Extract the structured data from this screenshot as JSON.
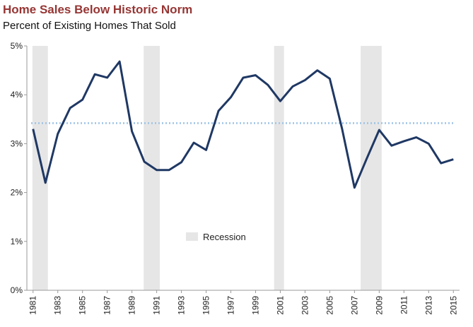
{
  "chart_data": {
    "type": "line",
    "title": "Home Sales Below Historic Norm",
    "subtitle": "Percent of Existing Homes That Sold",
    "x": [
      1981,
      1982,
      1983,
      1984,
      1985,
      1986,
      1987,
      1988,
      1989,
      1990,
      1991,
      1992,
      1993,
      1994,
      1995,
      1996,
      1997,
      1998,
      1999,
      2000,
      2001,
      2002,
      2003,
      2004,
      2005,
      2006,
      2007,
      2008,
      2009,
      2010,
      2011,
      2012,
      2013,
      2014,
      2015
    ],
    "series": [
      {
        "color": "#1f3864",
        "values": [
          3.3,
          2.2,
          3.2,
          3.73,
          3.9,
          4.42,
          4.35,
          4.68,
          3.25,
          2.63,
          2.46,
          2.46,
          2.62,
          3.02,
          2.87,
          3.67,
          3.95,
          4.35,
          4.4,
          4.2,
          3.87,
          4.17,
          4.3,
          4.5,
          4.33,
          3.3,
          2.1,
          2.7,
          3.28,
          2.96,
          3.05,
          3.13,
          3.0,
          2.6,
          2.68
        ]
      }
    ],
    "reference_value": 3.42,
    "reference_color": "#9dc3e6",
    "recessions": [
      [
        1980.95,
        1982.2
      ],
      [
        1989.95,
        1991.25
      ],
      [
        2000.5,
        2001.3
      ],
      [
        2007.5,
        2009.2
      ]
    ],
    "recession_color": "#e6e6e6",
    "legend": "Recession",
    "xlim": [
      1980.5,
      2015.5
    ],
    "xticks": [
      1981,
      1983,
      1985,
      1987,
      1989,
      1991,
      1993,
      1995,
      1997,
      1999,
      2001,
      2003,
      2005,
      2007,
      2009,
      2011,
      2013,
      2015
    ],
    "ylim": [
      0,
      5
    ],
    "yticks": [
      {
        "value": 0,
        "label": "0%"
      },
      {
        "value": 1,
        "label": "1%"
      },
      {
        "value": 2,
        "label": "2%"
      },
      {
        "value": 3,
        "label": "3%"
      },
      {
        "value": 4,
        "label": "4%"
      },
      {
        "value": 5,
        "label": "5%"
      }
    ]
  }
}
